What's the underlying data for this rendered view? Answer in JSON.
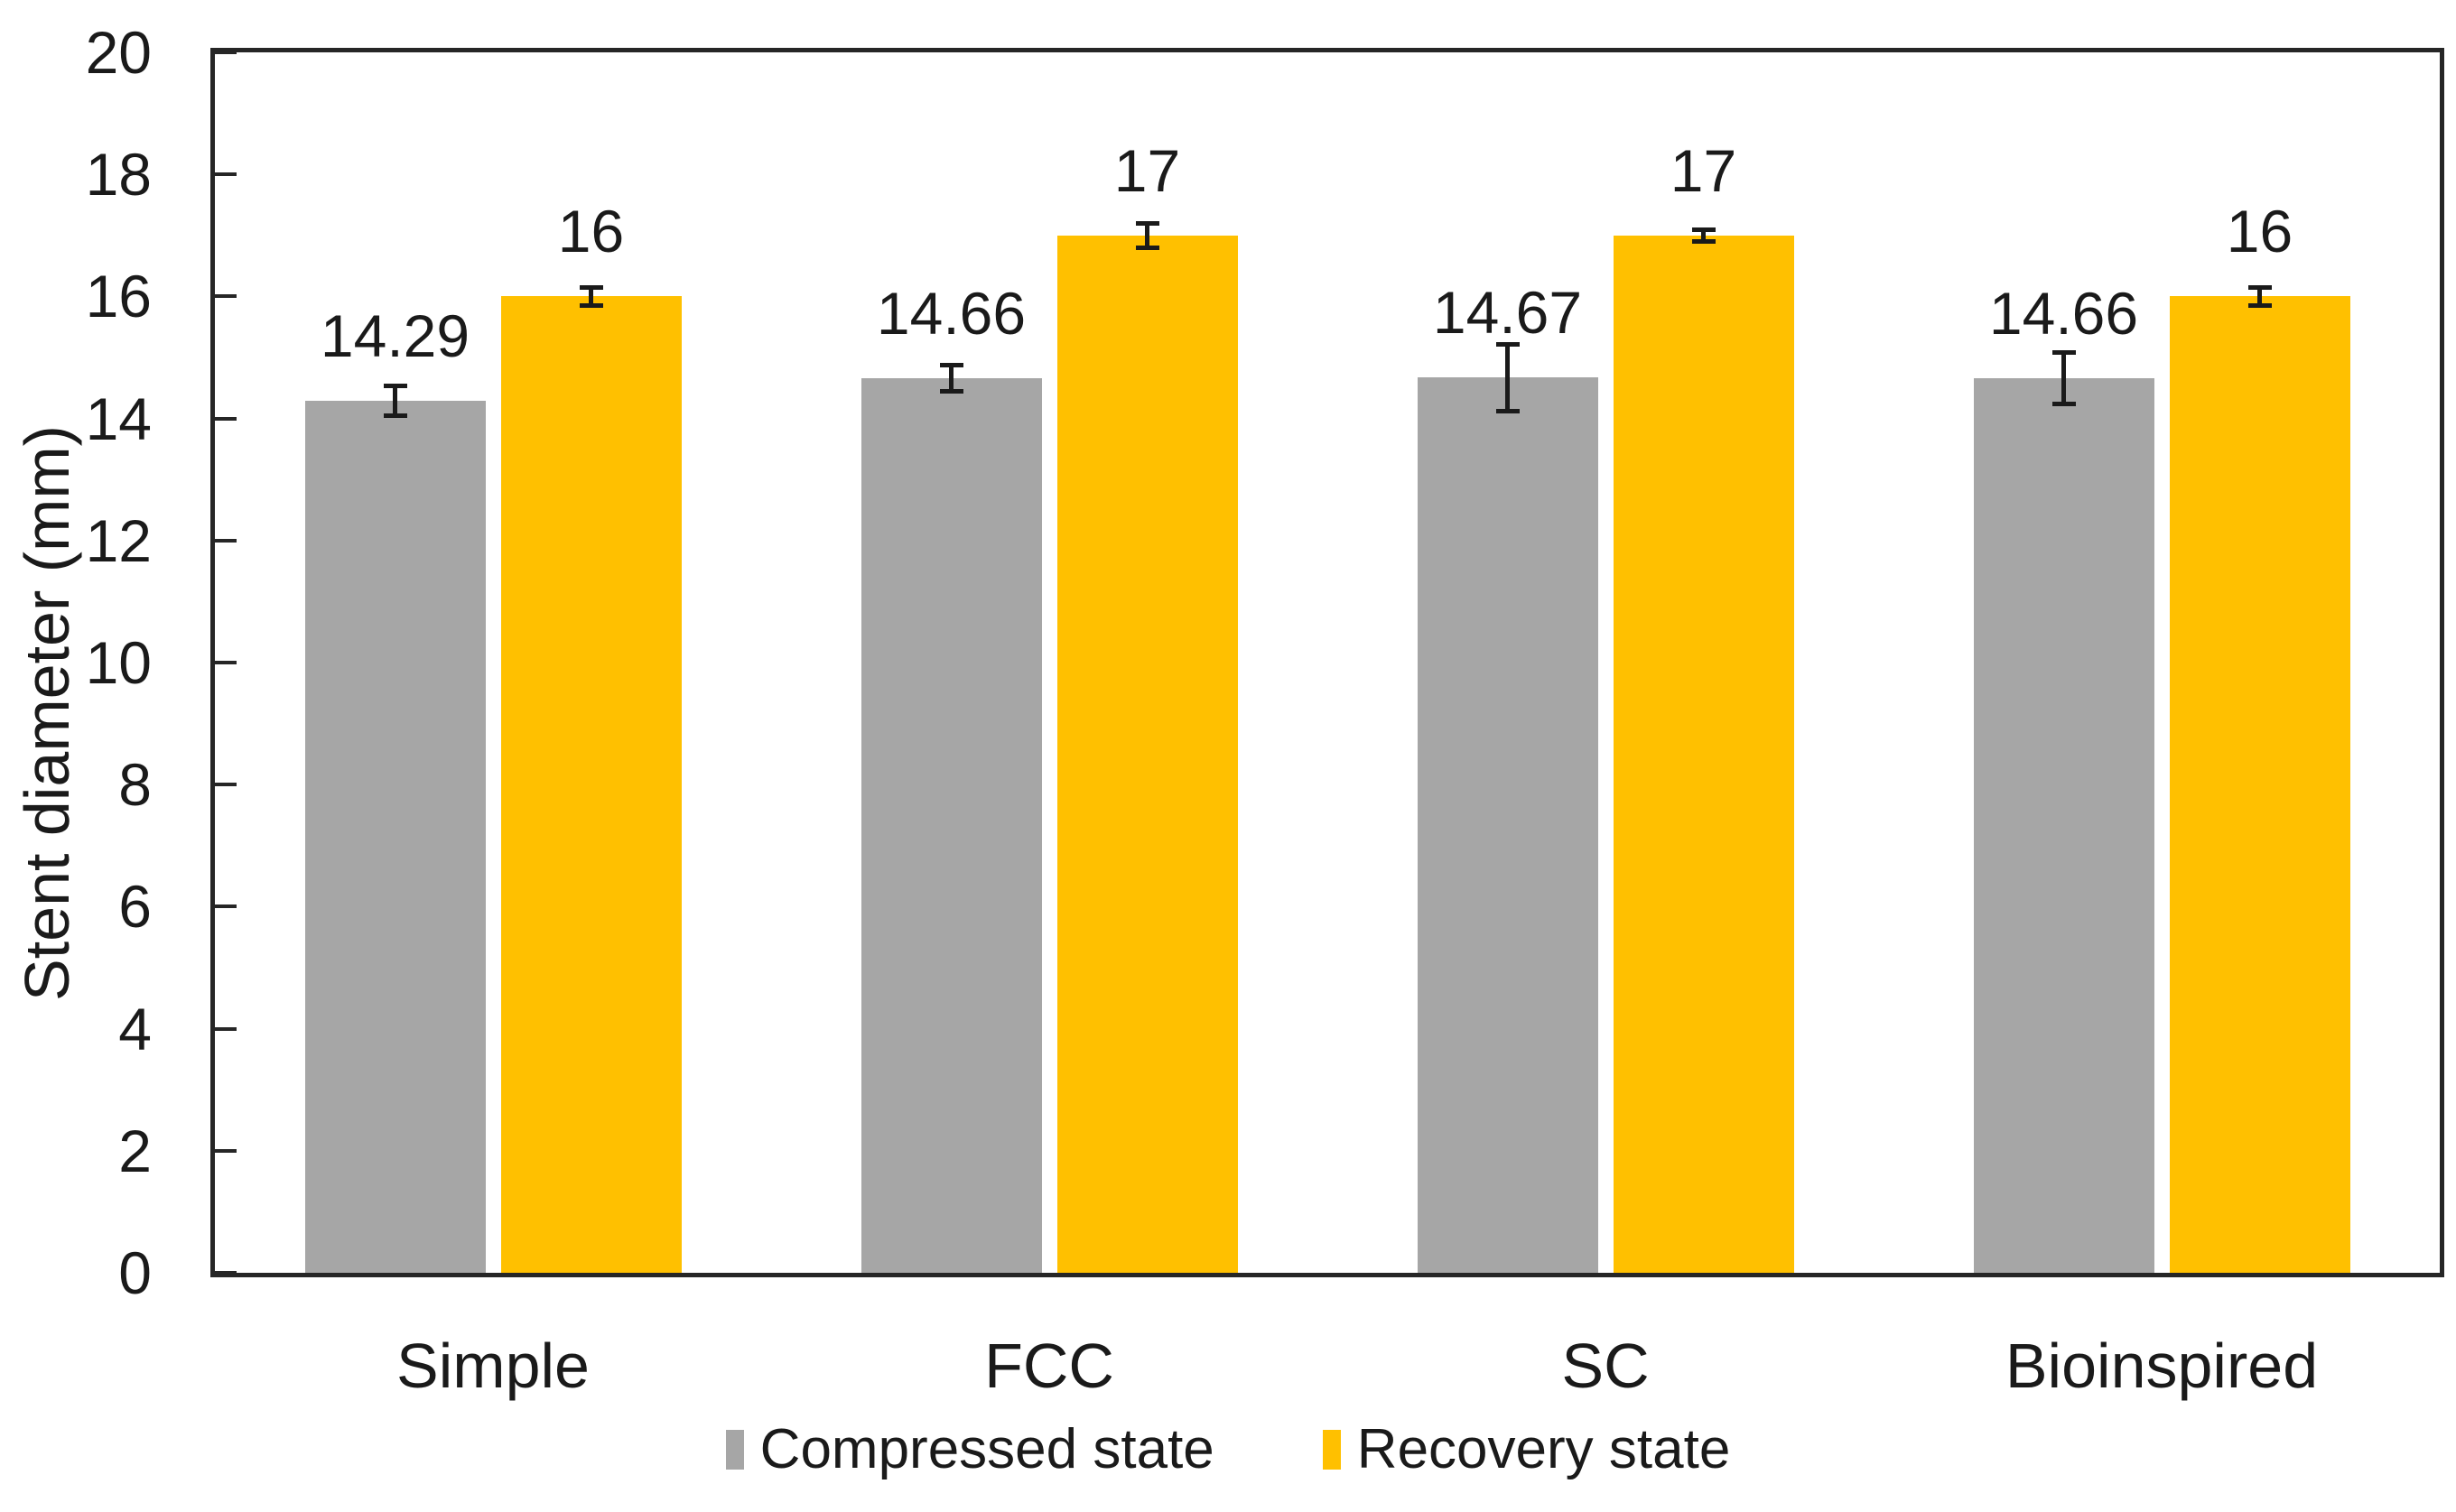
{
  "figure": {
    "background": "#FFFFFF",
    "text_color": "#1A1A1A",
    "axis_color": "#262626"
  },
  "chart_data": {
    "type": "bar",
    "title": "",
    "xlabel": "",
    "ylabel": "Stent diameter (mm)",
    "ylim": [
      0,
      20
    ],
    "ytick_step": 2,
    "yticks": [
      0,
      2,
      4,
      6,
      8,
      10,
      12,
      14,
      16,
      18,
      20
    ],
    "grid": false,
    "legend_position": "bottom",
    "categories": [
      "Simple",
      "FCC",
      "SC",
      "Bioinspired"
    ],
    "series": [
      {
        "name": "Compressed state",
        "color": "#A6A6A6",
        "values": [
          14.29,
          14.66,
          14.67,
          14.66
        ],
        "labels": [
          "14.29",
          "14.66",
          "14.67",
          "14.66"
        ],
        "errors": [
          0.25,
          0.22,
          0.55,
          0.42
        ]
      },
      {
        "name": "Recovery state",
        "color": "#FFC000",
        "values": [
          16,
          17,
          17,
          16
        ],
        "labels": [
          "16",
          "17",
          "17",
          "16"
        ],
        "errors": [
          0.15,
          0.2,
          0.1,
          0.15
        ]
      }
    ]
  }
}
